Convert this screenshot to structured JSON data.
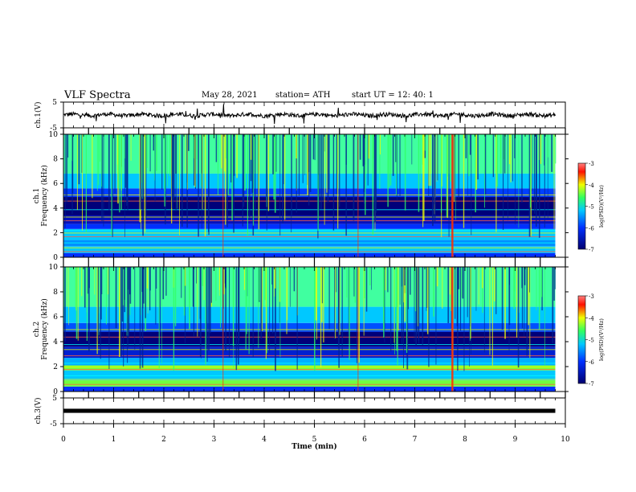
{
  "header": {
    "title": "VLF Spectra",
    "date": "May 28, 2021",
    "station": "station= ATH",
    "start": "start  UT =   12: 40: 1"
  },
  "chart_data": {
    "type": "heatmap",
    "x_axis": {
      "label": "Time (min)",
      "range": [
        0,
        10
      ],
      "ticks": [
        0,
        1,
        2,
        3,
        4,
        5,
        6,
        7,
        8,
        9,
        10
      ]
    },
    "panels": [
      {
        "id": "ch1-wave",
        "ylabel": "ch.1(V)",
        "ylim": [
          -5,
          5
        ],
        "ticks": [
          5,
          -5
        ]
      },
      {
        "id": "ch1-spec",
        "ylabel": "ch.1 Frequency (kHz)",
        "ylim": [
          0,
          10
        ],
        "ticks": [
          0,
          2,
          4,
          6,
          8,
          10
        ],
        "colorbar": {
          "label": "log(PSD)(V²/Hz)",
          "range": [
            -7,
            -3
          ],
          "ticks": [
            -3,
            -4,
            -5,
            -6,
            -7
          ]
        }
      },
      {
        "id": "ch2-spec",
        "ylabel": "ch.2 Frequency (kHz)",
        "ylim": [
          0,
          10
        ],
        "ticks": [
          0,
          2,
          4,
          6,
          8,
          10
        ],
        "colorbar": {
          "label": "log(PSD)(V²/Hz)",
          "range": [
            -7,
            -3
          ],
          "ticks": [
            -3,
            -4,
            -5,
            -6,
            -7
          ]
        }
      },
      {
        "id": "ch3-wave",
        "ylabel": "ch.3(V)",
        "ylim": [
          -5,
          5
        ],
        "ticks": [
          5,
          -5
        ]
      }
    ],
    "data_end_min": 9.8,
    "vertical_events_min": [
      3.18,
      5.87,
      7.75
    ],
    "colors": {
      "dark_blue": "#00007a",
      "blue": "#0030ff",
      "cyan": "#00c8ff",
      "green": "#30ff60",
      "yellow": "#f0ff00",
      "red": "#ff1000"
    }
  }
}
